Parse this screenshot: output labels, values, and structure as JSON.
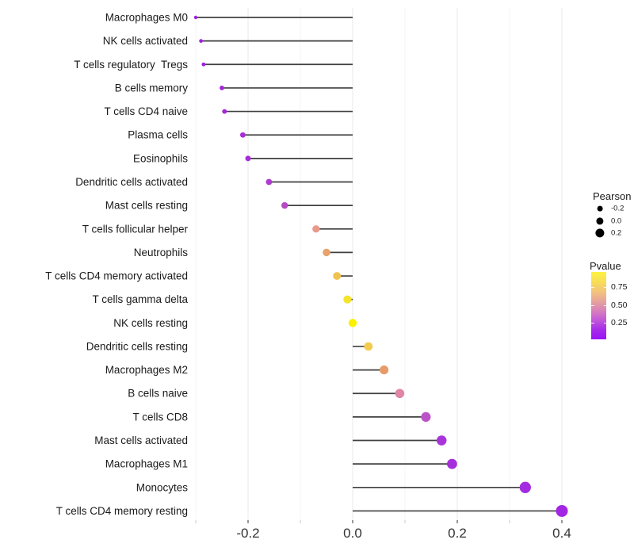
{
  "chart_data": {
    "type": "lollipop",
    "orientation": "horizontal",
    "title": "",
    "xlabel": "",
    "ylabel": "",
    "xlim": [
      -0.34,
      0.43
    ],
    "grid": true,
    "x_major_ticks": [
      -0.2,
      0.0,
      0.2,
      0.4
    ],
    "x_major_tick_labels": [
      "-0.2",
      "0.0",
      "0.2",
      "0.4"
    ],
    "x_minor_ticks": [
      -0.3,
      -0.1,
      0.1,
      0.3
    ],
    "points": [
      {
        "label": "Macrophages M0",
        "pearson": -0.3,
        "pvalue_est": 0.05,
        "color": "#9E21DC"
      },
      {
        "label": "NK cells activated",
        "pearson": -0.29,
        "pvalue_est": 0.04,
        "color": "#9C1FDE"
      },
      {
        "label": "T cells regulatory  Tregs",
        "pearson": -0.285,
        "pvalue_est": 0.04,
        "color": "#9D20DD"
      },
      {
        "label": "B cells memory",
        "pearson": -0.25,
        "pvalue_est": 0.07,
        "color": "#A527DA"
      },
      {
        "label": "T cells CD4 naive",
        "pearson": -0.245,
        "pvalue_est": 0.06,
        "color": "#A326DB"
      },
      {
        "label": "Plasma cells",
        "pearson": -0.21,
        "pvalue_est": 0.08,
        "color": "#A82CD8"
      },
      {
        "label": "Eosinophils",
        "pearson": -0.2,
        "pvalue_est": 0.08,
        "color": "#A72BD9"
      },
      {
        "label": "Dendritic cells activated",
        "pearson": -0.16,
        "pvalue_est": 0.12,
        "color": "#AE3AD0"
      },
      {
        "label": "Mast cells resting",
        "pearson": -0.13,
        "pvalue_est": 0.18,
        "color": "#B54BC4"
      },
      {
        "label": "T cells follicular helper",
        "pearson": -0.07,
        "pvalue_est": 0.55,
        "color": "#E8998B"
      },
      {
        "label": "Neutrophils",
        "pearson": -0.05,
        "pvalue_est": 0.62,
        "color": "#E9A26B"
      },
      {
        "label": "T cells CD4 memory activated",
        "pearson": -0.03,
        "pvalue_est": 0.75,
        "color": "#F0C24F"
      },
      {
        "label": "T cells gamma delta",
        "pearson": -0.01,
        "pvalue_est": 0.88,
        "color": "#F6E32C"
      },
      {
        "label": "NK cells resting",
        "pearson": 0.0,
        "pvalue_est": 0.95,
        "color": "#FAF200"
      },
      {
        "label": "Dendritic cells resting",
        "pearson": 0.03,
        "pvalue_est": 0.78,
        "color": "#F4CB4E"
      },
      {
        "label": "Macrophages M2",
        "pearson": 0.06,
        "pvalue_est": 0.6,
        "color": "#E69B68"
      },
      {
        "label": "B cells naive",
        "pearson": 0.09,
        "pvalue_est": 0.45,
        "color": "#DE85A8"
      },
      {
        "label": "T cells CD8",
        "pearson": 0.14,
        "pvalue_est": 0.2,
        "color": "#BC52C8"
      },
      {
        "label": "Mast cells activated",
        "pearson": 0.17,
        "pvalue_est": 0.12,
        "color": "#A935DA"
      },
      {
        "label": "Macrophages M1",
        "pearson": 0.19,
        "pvalue_est": 0.1,
        "color": "#A62FDC"
      },
      {
        "label": "Monocytes",
        "pearson": 0.33,
        "pvalue_est": 0.08,
        "color": "#A42BE0"
      },
      {
        "label": "T cells CD4 memory resting",
        "pearson": 0.4,
        "pvalue_est": 0.05,
        "color": "#A326E2"
      }
    ],
    "legend": {
      "size": {
        "title": "Pearson",
        "entries": [
          {
            "label": "-0.2",
            "value": -0.2
          },
          {
            "label": "0.0",
            "value": 0.0
          },
          {
            "label": "0.2",
            "value": 0.2
          }
        ],
        "dot_color": "#000000"
      },
      "color": {
        "title": "Pvalue",
        "tick_labels": [
          "0.75",
          "0.50",
          "0.25"
        ],
        "tick_values": [
          0.75,
          0.5,
          0.25
        ],
        "gradient_stops": [
          "#FCF340",
          "#F8DE55",
          "#F3C57B",
          "#E7A59A",
          "#D981BB",
          "#C158D8",
          "#A62BEA",
          "#9913F4"
        ]
      }
    },
    "colors": {
      "stem": "#404040",
      "major_grid": "#EAEAEA",
      "minor_grid": "#F4F4F4",
      "x_tick_mark": "#333333",
      "x_minor_tick_mark": "#C9C9C9",
      "x_tick_text": "#333333",
      "y_label_text": "#1A1A1A",
      "background": "#FFFFFF"
    }
  }
}
